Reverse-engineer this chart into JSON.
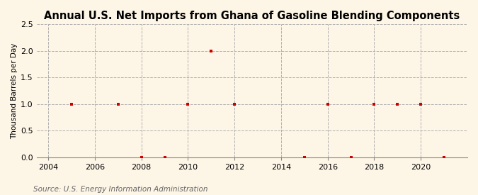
{
  "title": "Annual U.S. Net Imports from Ghana of Gasoline Blending Components",
  "ylabel": "Thousand Barrels per Day",
  "source": "Source: U.S. Energy Information Administration",
  "background_color": "#fdf5e6",
  "plot_background_color": "#fdf5e6",
  "grid_color": "#b0b0b0",
  "marker_color": "#cc0000",
  "x_data": [
    2005,
    2007,
    2008,
    2009,
    2010,
    2011,
    2012,
    2015,
    2016,
    2017,
    2018,
    2019,
    2020,
    2021
  ],
  "y_data": [
    1.0,
    1.0,
    0.0,
    0.0,
    1.0,
    2.0,
    1.0,
    0.0,
    1.0,
    0.0,
    1.0,
    1.0,
    1.0,
    0.0
  ],
  "xlim": [
    2003.5,
    2022
  ],
  "ylim": [
    0.0,
    2.5
  ],
  "yticks": [
    0.0,
    0.5,
    1.0,
    1.5,
    2.0,
    2.5
  ],
  "xticks": [
    2004,
    2006,
    2008,
    2010,
    2012,
    2014,
    2016,
    2018,
    2020
  ],
  "title_fontsize": 10.5,
  "label_fontsize": 7.5,
  "tick_fontsize": 8,
  "source_fontsize": 7.5
}
